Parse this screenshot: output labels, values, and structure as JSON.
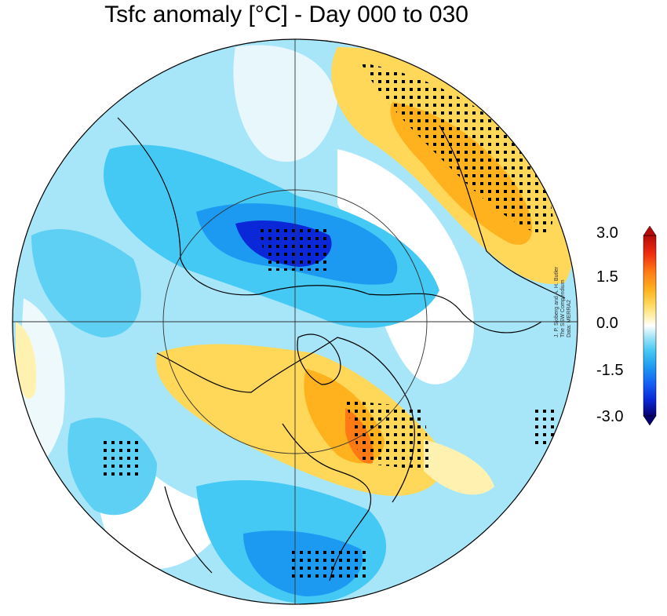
{
  "title": "Tsfc anomaly [°C] - Day 000 to 030",
  "colorbar": {
    "ticks": [
      "3.0",
      "1.5",
      "0.0",
      "-1.5",
      "-3.0"
    ],
    "colors": [
      "#08006e",
      "#0a28d8",
      "#1560f5",
      "#1c9af2",
      "#44c8f4",
      "#a6e6f8",
      "#ffffff",
      "#fff2b0",
      "#ffd85a",
      "#ffb21e",
      "#ff7a14",
      "#f02c10",
      "#b40a0a"
    ]
  },
  "credit": {
    "line1": "J. P. Sjoberg and A. H. Butler",
    "line2": "The SSW Compendium",
    "line3": "Data: MERRA2"
  },
  "palette": {
    "land_outline": "#000000",
    "cold_light": "#a6e6f8",
    "cold_mid": "#44c8f4",
    "cold_strong": "#1560f5",
    "cold_extreme": "#0a28d8",
    "warm_light": "#fff2b0",
    "warm_mid": "#ffd85a",
    "warm_strong": "#ffb21e",
    "warm_extreme": "#ff7a14"
  }
}
